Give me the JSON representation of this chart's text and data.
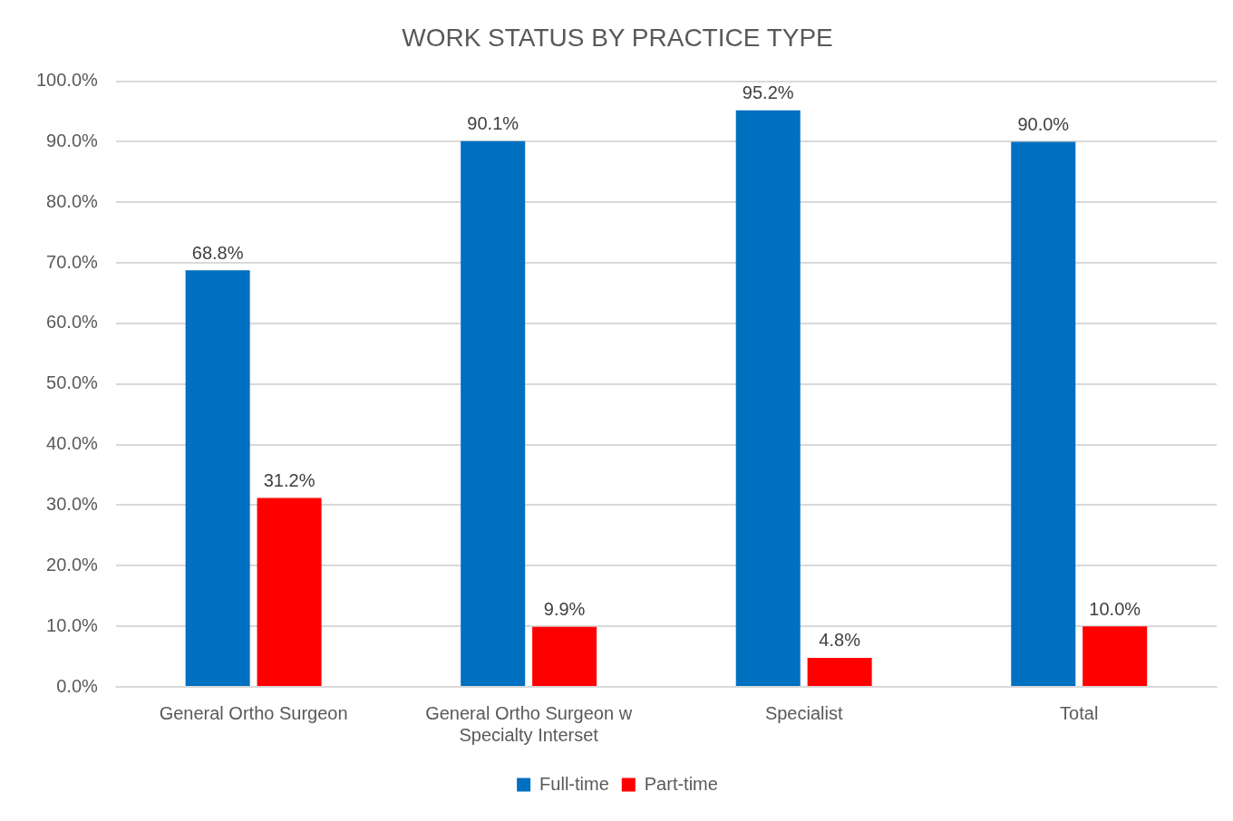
{
  "chart_data": {
    "type": "bar",
    "title": "WORK STATUS BY PRACTICE TYPE",
    "categories": [
      "General Ortho Surgeon",
      "General Ortho Surgeon w Specialty Interset",
      "Specialist",
      "Total"
    ],
    "series": [
      {
        "name": "Full-time",
        "color": "#0070c0",
        "values": [
          68.8,
          90.1,
          95.2,
          90.0
        ],
        "value_labels": [
          "68.8%",
          "90.1%",
          "95.2%",
          "90.0%"
        ]
      },
      {
        "name": "Part-time",
        "color": "#ff0000",
        "values": [
          31.2,
          9.9,
          4.8,
          10.0
        ],
        "value_labels": [
          "31.2%",
          "9.9%",
          "4.8%",
          "10.0%"
        ]
      }
    ],
    "ylim": [
      0,
      100
    ],
    "yticks": [
      {
        "value": 0,
        "label": "0.0%"
      },
      {
        "value": 10,
        "label": "10.0%"
      },
      {
        "value": 20,
        "label": "20.0%"
      },
      {
        "value": 30,
        "label": "30.0%"
      },
      {
        "value": 40,
        "label": "40.0%"
      },
      {
        "value": 50,
        "label": "50.0%"
      },
      {
        "value": 60,
        "label": "60.0%"
      },
      {
        "value": 70,
        "label": "70.0%"
      },
      {
        "value": 80,
        "label": "80.0%"
      },
      {
        "value": 90,
        "label": "90.0%"
      },
      {
        "value": 100,
        "label": "100.0%"
      }
    ],
    "grid": "y",
    "legend": "bottom"
  }
}
